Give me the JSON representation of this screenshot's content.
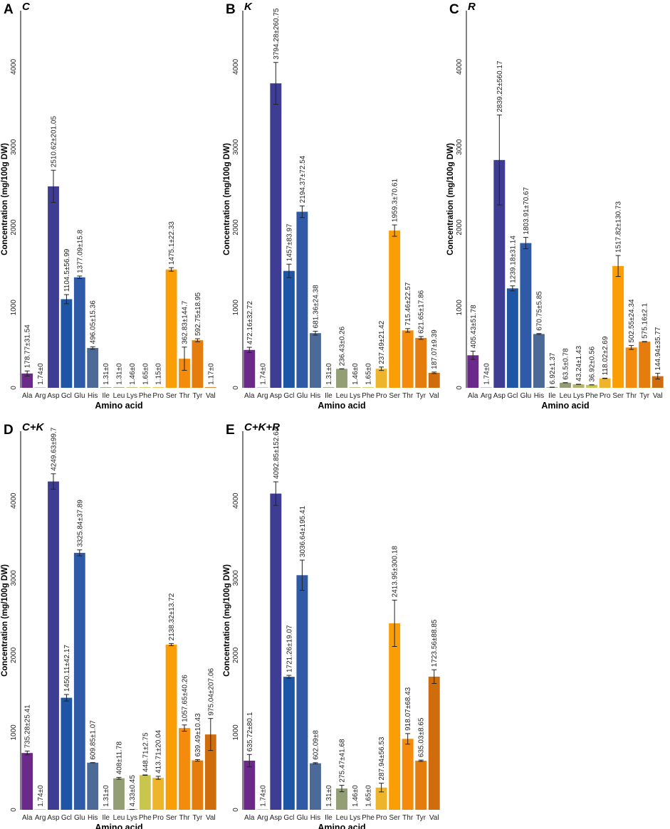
{
  "figure": {
    "xlabel": "Amino acid",
    "ylabel": "Concentration (mg/100g DW)"
  },
  "colors": {
    "Ala": "#6b2a8a",
    "Arg": "#b8b8c8",
    "Asp": "#3f3c94",
    "Gcl": "#1f55a5",
    "Glu": "#2f5aa8",
    "His": "#4c6a98",
    "Ile": "#8a9a76",
    "Leu": "#949e74",
    "Lys": "#b1b26c",
    "Phe": "#c8c64e",
    "Pro": "#eeb52b",
    "Ser": "#fb9e06",
    "Thr": "#f48b0c",
    "Tyr": "#e47c0e",
    "Val": "#cf6c0c"
  },
  "chart_data": [
    {
      "type": "bar",
      "letter": "A",
      "title": "C",
      "xlabel": "Amino acid",
      "ylabel": "Concentration (mg/100g DW)",
      "ylim": [
        0,
        4700
      ],
      "yticks": [
        "0",
        "1000",
        "2000",
        "3000",
        "4000"
      ],
      "categories": [
        "Ala",
        "Arg",
        "Asp",
        "Gcl",
        "Glu",
        "His",
        "Ile",
        "Leu",
        "Lys",
        "Phe",
        "Pro",
        "Ser",
        "Thr",
        "Tyr",
        "Val"
      ],
      "values": [
        178.77,
        1.74,
        2510.62,
        1104.5,
        1377.09,
        496.05,
        1.31,
        1.31,
        1.46,
        1.65,
        1.15,
        1475.1,
        362.83,
        592.75,
        1.17
      ],
      "errors": [
        31.54,
        0,
        201.05,
        56.99,
        15.8,
        15.36,
        0,
        0,
        0,
        0,
        0,
        22.33,
        144.7,
        18.95,
        0
      ],
      "labels": [
        "178.77±31.54",
        "1.74±0",
        "2510.62±201.05",
        "1104.5±56.99",
        "1377.09±15.8",
        "496.05±15.36",
        "1.31±0",
        "1.31±0",
        "1.46±0",
        "1.65±0",
        "1.15±0",
        "1475.1±22.33",
        "362.83±144.7",
        "592.75±18.95",
        "1.17±0"
      ]
    },
    {
      "type": "bar",
      "letter": "B",
      "title": "K",
      "xlabel": "Amino acid",
      "ylabel": "Concentration (mg/100g DW)",
      "ylim": [
        0,
        4700
      ],
      "yticks": [
        "0",
        "1000",
        "2000",
        "3000",
        "4000"
      ],
      "categories": [
        "Ala",
        "Arg",
        "Asp",
        "Gcl",
        "Glu",
        "His",
        "Ile",
        "Leu",
        "Lys",
        "Phe",
        "Pro",
        "Ser",
        "Thr",
        "Tyr",
        "Val"
      ],
      "values": [
        472.16,
        1.74,
        3794.28,
        1457,
        2194.37,
        681.36,
        1.31,
        236.43,
        1.46,
        1.65,
        237.49,
        1959.3,
        715.46,
        621.65,
        187.07
      ],
      "errors": [
        32.72,
        0,
        260.75,
        83.97,
        72.54,
        24.38,
        0,
        0.26,
        0,
        0,
        21.42,
        70.61,
        22.57,
        17.86,
        9.39
      ],
      "labels": [
        "472.16±32.72",
        "1.74±0",
        "3794.28±260.75",
        "1457±83.97",
        "2194.37±72.54",
        "681.36±24.38",
        "1.31±0",
        "236.43±0.26",
        "1.46±0",
        "1.65±0",
        "237.49±21.42",
        "1959.3±70.61",
        "715.46±22.57",
        "621.65±17.86",
        "187.07±9.39"
      ]
    },
    {
      "type": "bar",
      "letter": "C",
      "title": "R",
      "xlabel": "Amino acid",
      "ylabel": "Concentration (mg/100g DW)",
      "ylim": [
        0,
        4700
      ],
      "yticks": [
        "0",
        "1000",
        "2000",
        "3000",
        "4000"
      ],
      "categories": [
        "Ala",
        "Arg",
        "Asp",
        "Gcl",
        "Glu",
        "His",
        "Ile",
        "Leu",
        "Lys",
        "Phe",
        "Pro",
        "Ser",
        "Thr",
        "Tyr",
        "Val"
      ],
      "values": [
        405.43,
        1.74,
        2839.22,
        1239.18,
        1803.91,
        670.75,
        6.92,
        63.5,
        43.24,
        36.92,
        118.02,
        1517.82,
        502.55,
        575.16,
        144.94
      ],
      "errors": [
        51.78,
        0,
        560.17,
        31.14,
        70.67,
        5.85,
        1.37,
        0.78,
        1.43,
        0.56,
        2.69,
        130.73,
        24.34,
        2.1,
        35.77
      ],
      "labels": [
        "405.43±51.78",
        "1.74±0",
        "2839.22±560.17",
        "1239.18±31.14",
        "1803.91±70.67",
        "670.75±5.85",
        "6.92±1.37",
        "63.5±0.78",
        "43.24±1.43",
        "36.92±0.56",
        "118.02±2.69",
        "1517.82±130.73",
        "502.55±24.34",
        "575.16±2.1",
        "144.94±35.77"
      ]
    },
    {
      "type": "bar",
      "letter": "D",
      "title": "C+K",
      "xlabel": "Amino acid",
      "ylabel": "Concentration (mg/100g DW)",
      "ylim": [
        0,
        4900
      ],
      "yticks": [
        "0",
        "1000",
        "2000",
        "3000",
        "4000"
      ],
      "categories": [
        "Ala",
        "Arg",
        "Asp",
        "Gcl",
        "Glu",
        "His",
        "Ile",
        "Leu",
        "Lys",
        "Phe",
        "Pro",
        "Ser",
        "Thr",
        "Tyr",
        "Val"
      ],
      "values": [
        735.28,
        1.74,
        4249.63,
        1450.11,
        3325.84,
        609.85,
        1.31,
        408,
        4.33,
        448.71,
        413.71,
        2138.32,
        1057.65,
        639.49,
        975.04
      ],
      "errors": [
        25.41,
        0,
        99.7,
        42.17,
        37.89,
        1.07,
        0,
        11.78,
        0.45,
        2.75,
        20.04,
        13.72,
        40.26,
        10.43,
        207.06
      ],
      "labels": [
        "735.28±25.41",
        "1.74±0",
        "4249.63±99.7",
        "1450.11±42.17",
        "3325.84±37.89",
        "609.85±1.07",
        "1.31±0",
        "408±11.78",
        "4.33±0.45",
        "448.71±2.75",
        "413.71±20.04",
        "2138.32±13.72",
        "1057.65±40.26",
        "639.49±10.43",
        "975.04±207.06"
      ]
    },
    {
      "type": "bar",
      "letter": "E",
      "title": "C+K+R",
      "xlabel": "Amino acid",
      "ylabel": "Concentration (mg/100g DW)",
      "ylim": [
        0,
        4900
      ],
      "yticks": [
        "0",
        "1000",
        "2000",
        "3000",
        "4000"
      ],
      "categories": [
        "Ala",
        "Arg",
        "Asp",
        "Gcl",
        "Glu",
        "His",
        "Ile",
        "Leu",
        "Lys",
        "Phe",
        "Pro",
        "Ser",
        "Thr",
        "Tyr",
        "Val"
      ],
      "values": [
        635.72,
        1.74,
        4092.85,
        1721.26,
        3036.64,
        602.09,
        1.31,
        275.47,
        1.46,
        1.65,
        287.94,
        2413.95,
        918.07,
        635.03,
        1723.56
      ],
      "errors": [
        80.1,
        0,
        152.64,
        19.07,
        195.41,
        8,
        0,
        41.68,
        0,
        0,
        56.53,
        300.18,
        68.43,
        8.65,
        88.85
      ],
      "labels": [
        "635.72±80.1",
        "1.74±0",
        "4092.85±152.64",
        "1721.26±19.07",
        "3036.64±195.41",
        "602.09±8",
        "1.31±0",
        "275.47±41.68",
        "1.46±0",
        "1.65±0",
        "287.94±56.53",
        "2413.95±300.18",
        "918.07±68.43",
        "635.03±8.65",
        "1723.56±88.85"
      ]
    }
  ]
}
